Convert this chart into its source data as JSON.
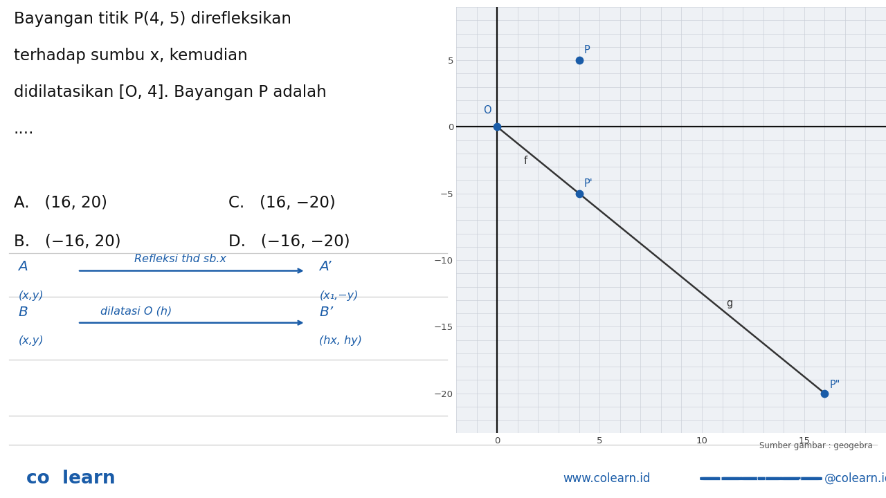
{
  "bg_color": "#ffffff",
  "graph_bg_color": "#eef1f5",
  "grid_color": "#c8ced6",
  "axis_color": "#111111",
  "point_color": "#1a5ca8",
  "line_color": "#333333",
  "label_color": "#1a5ca8",
  "text_color": "#111111",
  "title_text_line1": "Bayangan titik P(4, 5) direfleksikan",
  "title_text_line2": "terhadap sumbu x, kemudian",
  "title_text_line3": "didilatasikan [O, 4]. Bayangan P adalah",
  "title_text_line4": "....",
  "answer_A": "A.   (16, 20)",
  "answer_B": "B.   (−16, 20)",
  "answer_C": "C.   (16, −20)",
  "answer_D": "D.   (−16, −20)",
  "source_text": "Sumber gambar : geogebra",
  "footer_left": "co  learn",
  "footer_url": "www.colearn.id",
  "footer_social": "@colearn.id",
  "P": [
    4,
    5
  ],
  "P_prime": [
    4,
    -5
  ],
  "P_double_prime": [
    16,
    -20
  ],
  "O": [
    0,
    0
  ],
  "xmin": -1.5,
  "xmax": 18,
  "ymin": -22,
  "ymax": 8,
  "xticks": [
    0,
    5,
    10,
    15
  ],
  "yticks": [
    -20,
    -15,
    -10,
    -5,
    0,
    5
  ],
  "divider_color": "#cccccc",
  "handwriting_color": "#1a5ca8"
}
